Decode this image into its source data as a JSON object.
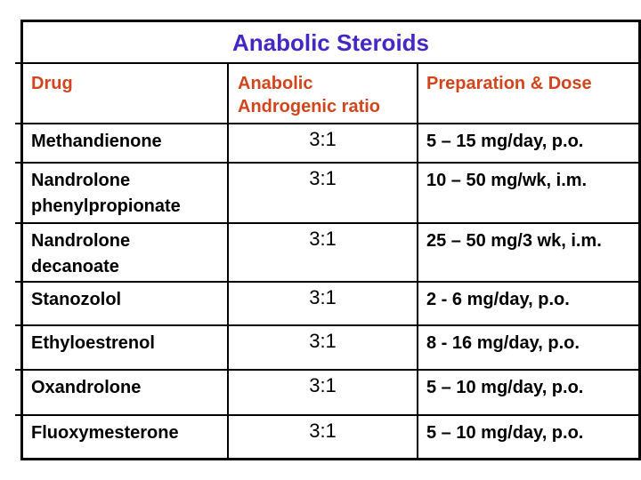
{
  "slide": {
    "title": "Anabolic Steroids"
  },
  "colors": {
    "title_text": "#4527C4",
    "header_text": "#D2451C",
    "body_text": "#000000",
    "border": "#000000",
    "background": "#FFFFFF"
  },
  "table": {
    "header": {
      "drug": "Drug",
      "ratio": "Anabolic Androgenic ratio",
      "dose": "Preparation & Dose"
    },
    "rows": [
      {
        "drug": "Methandienone",
        "ratio": "3:1",
        "dose": "5 – 15 mg/day, p.o."
      },
      {
        "drug": "Nandrolone phenylpropionate",
        "ratio": "3:1",
        "dose": "10 – 50 mg/wk, i.m."
      },
      {
        "drug": "Nandrolone decanoate",
        "ratio": "3:1",
        "dose": "25 – 50 mg/3 wk, i.m."
      },
      {
        "drug": "Stanozolol",
        "ratio": "3:1",
        "dose": "2 - 6 mg/day, p.o."
      },
      {
        "drug": "Ethyloestrenol",
        "ratio": "3:1",
        "dose": "8 - 16 mg/day, p.o."
      },
      {
        "drug": "Oxandrolone",
        "ratio": "3:1",
        "dose": "5 – 10 mg/day, p.o."
      },
      {
        "drug": "Fluoxymesterone",
        "ratio": "3:1",
        "dose": "5 – 10 mg/day, p.o."
      }
    ]
  }
}
